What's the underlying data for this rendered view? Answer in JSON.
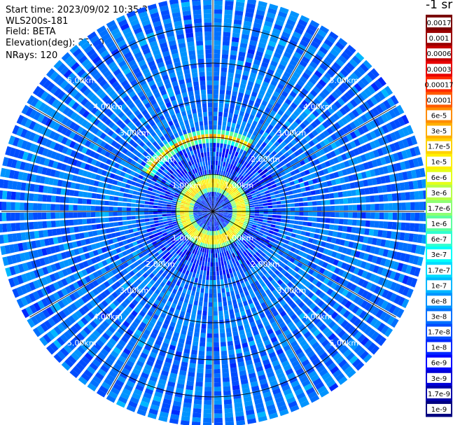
{
  "header": {
    "start_time": "Start time: 2023/09/02 10:35:37",
    "instrument": "WLS200s-181",
    "field": "Field: BETA",
    "elevation": "Elevation(deg): 35.30",
    "nrays": "NRays: 120"
  },
  "chart_data": {
    "type": "polar-ppi",
    "field": "BETA",
    "nrays": 120,
    "range_rings_km": [
      1,
      2,
      3,
      4,
      5
    ],
    "ring_labels": [
      "1.00km",
      "2.00km",
      "3.00km",
      "4.00km",
      "5.00km"
    ],
    "max_range_km": 5.7,
    "features": [
      {
        "name": "aerosol ring",
        "range_km": 0.75,
        "beta": "1.7e-5"
      },
      {
        "name": "cloud arc",
        "range_km": 2.0,
        "azimuth_deg": [
          300,
          30
        ],
        "beta": "6e-5"
      }
    ],
    "background_beta": "1.7e-8",
    "colorbar": {
      "unit_label": "-1 sr",
      "ticks": [
        "0.0017",
        "0.001",
        "0.0006",
        "0.0003",
        "0.00017",
        "0.0001",
        "6e-5",
        "3e-5",
        "1.7e-5",
        "1e-5",
        "6e-6",
        "3e-6",
        "1.7e-6",
        "1e-6",
        "6e-7",
        "3e-7",
        "1.7e-7",
        "1e-7",
        "6e-8",
        "3e-8",
        "1.7e-8",
        "1e-8",
        "6e-9",
        "3e-9",
        "1.7e-9",
        "1e-9"
      ],
      "colors": [
        "#7a0000",
        "#9a0000",
        "#c40000",
        "#e80000",
        "#ff2a00",
        "#ff5a00",
        "#ff8c00",
        "#ffb000",
        "#ffd200",
        "#fff000",
        "#e4ff1a",
        "#b8ff47",
        "#8cff73",
        "#5cffa0",
        "#30ffcf",
        "#00fffa",
        "#00dcff",
        "#00b8ff",
        "#0094ff",
        "#0070ff",
        "#004cff",
        "#0028ff",
        "#0004ff",
        "#0000d8",
        "#0000a8",
        "#000080"
      ]
    }
  }
}
